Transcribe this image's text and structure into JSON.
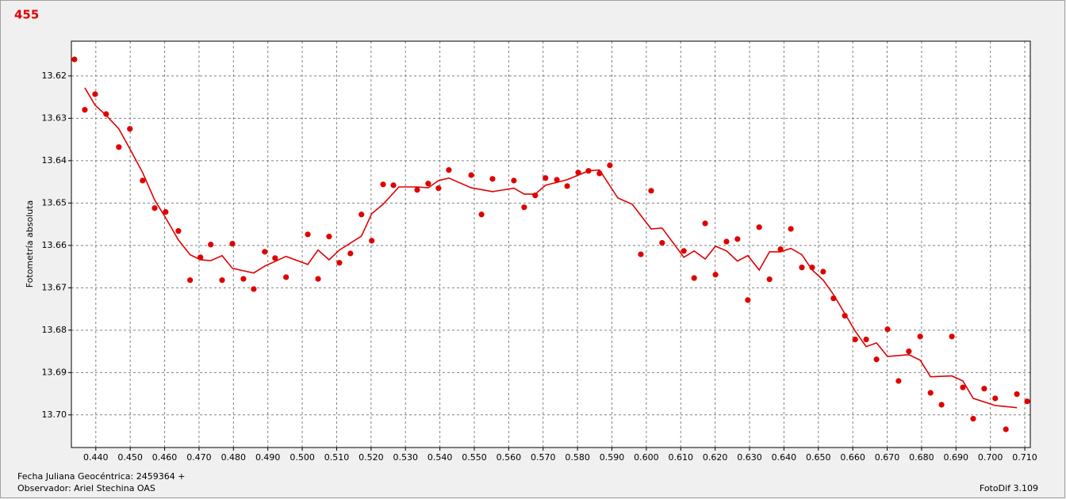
{
  "chart_data": {
    "type": "scatter",
    "title": "455",
    "y_label": "Fotometría absoluta",
    "x_label": "Fecha Juliana Geocéntrica: 2459364 +",
    "observer": "Observador: Ariel Stechina OAS",
    "software": "FotoDif 3.109",
    "xlim": [
      0.4329,
      0.7116
    ],
    "ylim": [
      13.6118,
      13.7077
    ],
    "y_inverted": true,
    "grid": true,
    "xticks": [
      {
        "value": 0.44,
        "label": "0.440"
      },
      {
        "value": 0.45,
        "label": "0.450"
      },
      {
        "value": 0.46,
        "label": "0.460"
      },
      {
        "value": 0.47,
        "label": "0.470"
      },
      {
        "value": 0.48,
        "label": "0.480"
      },
      {
        "value": 0.49,
        "label": "0.490"
      },
      {
        "value": 0.5,
        "label": "0.500"
      },
      {
        "value": 0.51,
        "label": "0.510"
      },
      {
        "value": 0.52,
        "label": "0.520"
      },
      {
        "value": 0.53,
        "label": "0.530"
      },
      {
        "value": 0.54,
        "label": "0.540"
      },
      {
        "value": 0.55,
        "label": "0.550"
      },
      {
        "value": 0.56,
        "label": "0.560"
      },
      {
        "value": 0.57,
        "label": "0.570"
      },
      {
        "value": 0.58,
        "label": "0.580"
      },
      {
        "value": 0.59,
        "label": "0.590"
      },
      {
        "value": 0.6,
        "label": "0.600"
      },
      {
        "value": 0.61,
        "label": "0.610"
      },
      {
        "value": 0.62,
        "label": "0.620"
      },
      {
        "value": 0.63,
        "label": "0.630"
      },
      {
        "value": 0.64,
        "label": "0.640"
      },
      {
        "value": 0.65,
        "label": "0.650"
      },
      {
        "value": 0.66,
        "label": "0.660"
      },
      {
        "value": 0.67,
        "label": "0.670"
      },
      {
        "value": 0.68,
        "label": "0.680"
      },
      {
        "value": 0.69,
        "label": "0.690"
      },
      {
        "value": 0.7,
        "label": "0.700"
      },
      {
        "value": 0.71,
        "label": "0.710"
      }
    ],
    "yticks": [
      13.62,
      13.63,
      13.64,
      13.65,
      13.66,
      13.67,
      13.68,
      13.69,
      {
        "value": 13.7,
        "label": "13.70"
      }
    ],
    "points": {
      "color": "#e00000",
      "x": [
        0.4338,
        0.4368,
        0.4398,
        0.443,
        0.4467,
        0.4499,
        0.4536,
        0.4571,
        0.4603,
        0.464,
        0.4674,
        0.4704,
        0.4734,
        0.4767,
        0.4797,
        0.4829,
        0.4859,
        0.4891,
        0.4921,
        0.4953,
        0.5016,
        0.5046,
        0.5078,
        0.5108,
        0.514,
        0.5172,
        0.5202,
        0.5235,
        0.5265,
        0.5334,
        0.5366,
        0.5396,
        0.5426,
        0.5491,
        0.5521,
        0.5553,
        0.5615,
        0.5645,
        0.5677,
        0.5707,
        0.574,
        0.577,
        0.5802,
        0.5832,
        0.5864,
        0.5894,
        0.5984,
        0.6014,
        0.6046,
        0.6109,
        0.6139,
        0.6171,
        0.6201,
        0.6233,
        0.6265,
        0.6295,
        0.6328,
        0.6358,
        0.639,
        0.642,
        0.6452,
        0.6482,
        0.6514,
        0.6544,
        0.6577,
        0.6607,
        0.6639,
        0.6669,
        0.6701,
        0.6733,
        0.6763,
        0.6796,
        0.6826,
        0.6858,
        0.6888,
        0.692,
        0.695,
        0.6982,
        0.7014,
        0.7045,
        0.7077,
        0.7107
      ],
      "values": [
        13.6161,
        13.628,
        13.6243,
        13.629,
        13.6368,
        13.6325,
        13.6447,
        13.6512,
        13.6521,
        13.6566,
        13.6682,
        13.6628,
        13.6598,
        13.6682,
        13.6596,
        13.6679,
        13.6703,
        13.6615,
        13.663,
        13.6675,
        13.6574,
        13.6679,
        13.6579,
        13.6641,
        13.6619,
        13.6527,
        13.6589,
        13.6456,
        13.6458,
        13.6469,
        13.6454,
        13.6465,
        13.6422,
        13.6434,
        13.6527,
        13.6443,
        13.6447,
        13.651,
        13.6482,
        13.6441,
        13.6445,
        13.646,
        13.6428,
        13.6424,
        13.643,
        13.6411,
        13.6621,
        13.6471,
        13.6594,
        13.6613,
        13.6677,
        13.6548,
        13.6669,
        13.6591,
        13.6585,
        13.6729,
        13.6557,
        13.668,
        13.6609,
        13.6561,
        13.6652,
        13.6652,
        13.6662,
        13.6725,
        13.6766,
        13.6822,
        13.6822,
        13.6869,
        13.6798,
        13.692,
        13.685,
        13.6815,
        13.6948,
        13.6976,
        13.6815,
        13.6935,
        13.7009,
        13.6938,
        13.6961,
        13.7034,
        13.6951,
        13.6968
      ]
    },
    "line": {
      "color": "#e00000",
      "x": [
        0.4368,
        0.4398,
        0.443,
        0.4467,
        0.4499,
        0.4536,
        0.4571,
        0.4603,
        0.464,
        0.4674,
        0.4704,
        0.4734,
        0.4767,
        0.4797,
        0.4829,
        0.4859,
        0.4891,
        0.4953,
        0.5016,
        0.5046,
        0.5078,
        0.5108,
        0.5172,
        0.5202,
        0.5235,
        0.5281,
        0.5334,
        0.5366,
        0.5396,
        0.5426,
        0.5491,
        0.5553,
        0.5615,
        0.5645,
        0.5677,
        0.5707,
        0.577,
        0.5832,
        0.5864,
        0.5917,
        0.5959,
        0.6014,
        0.6046,
        0.6109,
        0.6139,
        0.6171,
        0.6201,
        0.6233,
        0.6265,
        0.6295,
        0.6328,
        0.6358,
        0.639,
        0.642,
        0.6452,
        0.6482,
        0.6514,
        0.6544,
        0.6577,
        0.6607,
        0.6639,
        0.6669,
        0.6701,
        0.6763,
        0.6796,
        0.6826,
        0.6888,
        0.692,
        0.695,
        0.7014,
        0.7077
      ],
      "values": [
        13.6228,
        13.6269,
        13.6293,
        13.6325,
        13.6372,
        13.6428,
        13.6493,
        13.6535,
        13.6587,
        13.6622,
        13.6634,
        13.6636,
        13.6624,
        13.6654,
        13.666,
        13.6665,
        13.6649,
        13.6626,
        13.6645,
        13.6611,
        13.6634,
        13.6611,
        13.6578,
        13.6525,
        13.6503,
        13.6462,
        13.6462,
        13.6464,
        13.6447,
        13.6441,
        13.6464,
        13.6473,
        13.6465,
        13.6479,
        13.6479,
        13.6458,
        13.6445,
        13.6424,
        13.6422,
        13.6488,
        13.6503,
        13.6561,
        13.6559,
        13.6628,
        13.6613,
        13.6632,
        13.6602,
        13.6613,
        13.6637,
        13.6624,
        13.6658,
        13.6615,
        13.6615,
        13.6607,
        13.6622,
        13.6658,
        13.6682,
        13.6716,
        13.6761,
        13.6802,
        13.6839,
        13.683,
        13.6862,
        13.6858,
        13.6871,
        13.691,
        13.6908,
        13.692,
        13.6961,
        13.6978,
        13.6983
      ]
    }
  }
}
